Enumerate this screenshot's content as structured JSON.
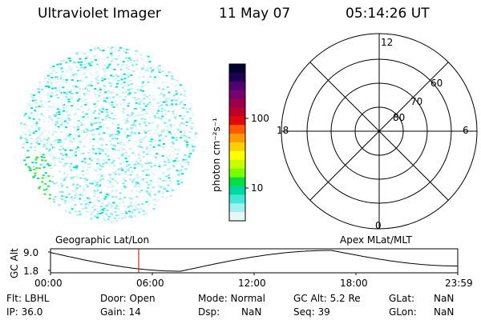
{
  "header": {
    "instrument": "Ultraviolet Imager",
    "date": "11 May 07",
    "time": "05:14:26 UT"
  },
  "colorbar": {
    "unit_label": "photon cm⁻²s⁻¹",
    "ticks": [
      "100",
      "10"
    ],
    "scale": "log",
    "colors": [
      "#000030",
      "#200050",
      "#500070",
      "#7a0070",
      "#9a004a",
      "#c0002a",
      "#e00a0a",
      "#ff5a00",
      "#ff9a00",
      "#ffd000",
      "#ffff00",
      "#c8ff00",
      "#78ff00",
      "#00e040",
      "#00d8a0",
      "#40e8d8",
      "#a0f0f0",
      "#e8f8f8"
    ]
  },
  "polar_plot": {
    "top_label": "12",
    "bottom_label": "0",
    "left_label": "18",
    "right_label": "6",
    "ring_labels": [
      "60",
      "70",
      "80"
    ]
  },
  "timeline": {
    "left_label": "Geographic Lat/Lon",
    "right_label": "Apex MLat/MLT",
    "y_axis_label": "GC Alt",
    "y_ticks": [
      "9.0",
      "1.8"
    ],
    "x_ticks": [
      "00:00",
      "06:00",
      "12:00",
      "18:00",
      "23:59"
    ],
    "marker_time": "05:14"
  },
  "info": {
    "flt": "Flt: LBHL",
    "door": "Door: Open",
    "mode": "Mode: Normal",
    "gc_alt": "GC Alt: 5.2 Re",
    "glat_label": "GLat:",
    "glat_value": "NaN",
    "ip": "IP: 36.0",
    "gain": "Gain: 14",
    "dsp_label": "Dsp:",
    "dsp_value": "NaN",
    "seq": "Seq: 39",
    "glon_label": "GLon:",
    "glon_value": "NaN"
  }
}
